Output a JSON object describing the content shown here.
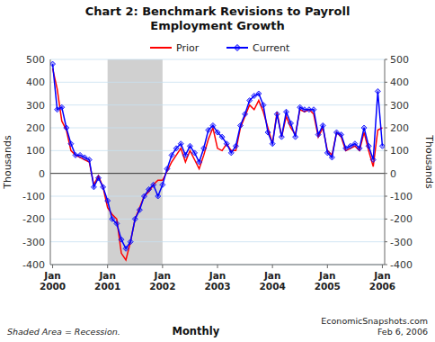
{
  "chart_data": {
    "type": "line",
    "title": "Chart 2: Benchmark Revisions to Payroll\nEmployment Growth",
    "y_label": "Thousands",
    "y2_label": "Thousands",
    "annotations": [
      "Shaded Area = Recession.",
      "Monthly",
      "EconomicSnapshots.com\nFeb 6, 2006"
    ],
    "recession": {
      "start": "Jan\n2001",
      "end": "Jan\n2002"
    },
    "categories": [
      "Jan\n2000",
      null,
      null,
      null,
      null,
      null,
      null,
      null,
      null,
      null,
      null,
      null,
      "Jan\n2001",
      null,
      null,
      null,
      null,
      null,
      null,
      null,
      null,
      null,
      null,
      null,
      "Jan\n2002",
      null,
      null,
      null,
      null,
      null,
      null,
      null,
      null,
      null,
      null,
      null,
      "Jan\n2003",
      null,
      null,
      null,
      null,
      null,
      null,
      null,
      null,
      null,
      null,
      null,
      "Jan\n2004",
      null,
      null,
      null,
      null,
      null,
      null,
      null,
      null,
      null,
      null,
      null,
      "Jan\n2005",
      null,
      null,
      null,
      null,
      null,
      null,
      null,
      null,
      null,
      null,
      null,
      "Jan\n2006"
    ],
    "series": [
      {
        "name": "Prior",
        "color": "#FF0000",
        "marker": "none",
        "line_style": "solid",
        "values": [
          460,
          370,
          230,
          190,
          100,
          80,
          70,
          60,
          50,
          -50,
          -10,
          -60,
          -150,
          -180,
          -200,
          -350,
          -380,
          -300,
          -200,
          -150,
          -100,
          -80,
          -50,
          -30,
          -30,
          10,
          50,
          80,
          110,
          50,
          100,
          60,
          20,
          80,
          150,
          200,
          110,
          100,
          130,
          100,
          100,
          200,
          250,
          300,
          280,
          320,
          270,
          200,
          130,
          270,
          160,
          250,
          200,
          170,
          280,
          270,
          280,
          260,
          160,
          200,
          100,
          80,
          180,
          160,
          100,
          110,
          120,
          100,
          180,
          100,
          30,
          190,
          200
        ]
      },
      {
        "name": "Current",
        "color": "#0000FF",
        "marker": "diamond",
        "line_style": "solid",
        "values": [
          480,
          280,
          290,
          200,
          130,
          80,
          80,
          70,
          60,
          -60,
          -20,
          -60,
          -120,
          -200,
          -220,
          -290,
          -330,
          -300,
          -200,
          -160,
          -100,
          -70,
          -50,
          -100,
          -50,
          20,
          80,
          110,
          130,
          80,
          120,
          90,
          50,
          110,
          190,
          210,
          180,
          160,
          130,
          90,
          120,
          210,
          260,
          320,
          340,
          350,
          300,
          180,
          130,
          260,
          160,
          270,
          220,
          160,
          290,
          280,
          280,
          280,
          170,
          210,
          90,
          70,
          180,
          170,
          110,
          120,
          130,
          110,
          200,
          120,
          60,
          360,
          120
        ]
      }
    ],
    "ylim": [
      -400,
      500
    ],
    "yticks": [
      -400,
      -300,
      -200,
      -100,
      0,
      100,
      200,
      300,
      400,
      500
    ],
    "y2lim": [
      -400,
      500
    ],
    "y2ticks": [
      -400,
      -300,
      -200,
      -100,
      0,
      100,
      200,
      300,
      400,
      500
    ],
    "grid": true,
    "legend": "top"
  }
}
